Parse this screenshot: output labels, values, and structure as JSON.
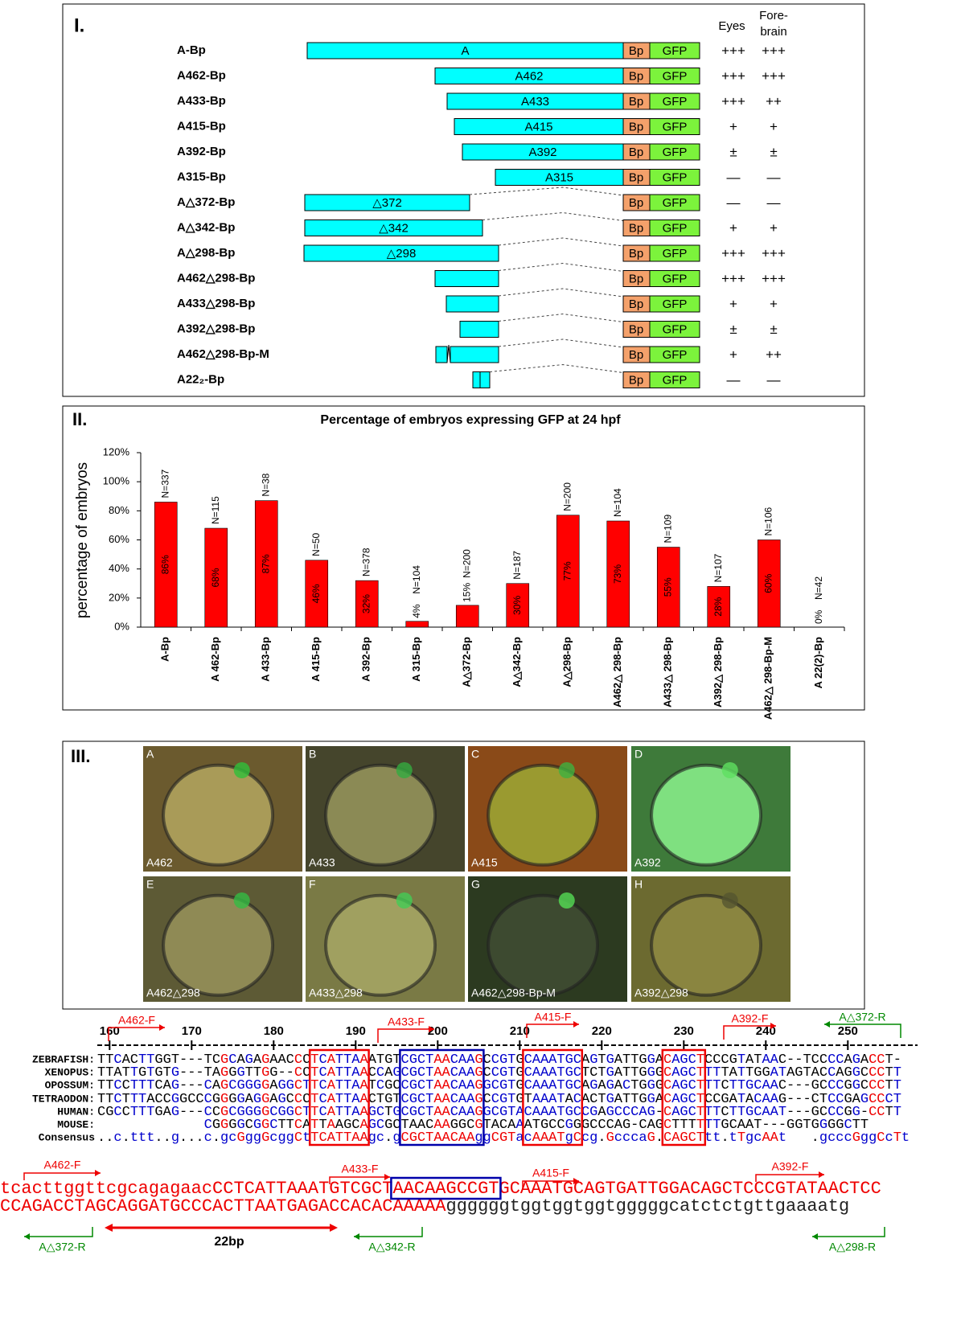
{
  "panel_i": {
    "label": "I.",
    "eyes_header": "Eyes",
    "forebrain_header": [
      "Fore-",
      "brain"
    ],
    "promoter": "Bp",
    "reporter": "GFP",
    "constructs": [
      {
        "name": "A-Bp",
        "fragment": "A",
        "eyes": "+++",
        "forebrain": "+++"
      },
      {
        "name": "A462-Bp",
        "fragment": "A462",
        "eyes": "+++",
        "forebrain": "+++"
      },
      {
        "name": "A433-Bp",
        "fragment": "A433",
        "eyes": "+++",
        "forebrain": "++"
      },
      {
        "name": "A415-Bp",
        "fragment": "A415",
        "eyes": "+",
        "forebrain": "+"
      },
      {
        "name": "A392-Bp",
        "fragment": "A392",
        "eyes": "±",
        "forebrain": "±"
      },
      {
        "name": "A315-Bp",
        "fragment": "A315",
        "eyes": "—",
        "forebrain": "—"
      },
      {
        "name": "A△372-Bp",
        "fragment": "△372",
        "eyes": "—",
        "forebrain": "—"
      },
      {
        "name": "A△342-Bp",
        "fragment": "△342",
        "eyes": "+",
        "forebrain": "+"
      },
      {
        "name": "A△298-Bp",
        "fragment": "△298",
        "eyes": "+++",
        "forebrain": "+++"
      },
      {
        "name": "A462△298-Bp",
        "eyes": "+++",
        "forebrain": "+++"
      },
      {
        "name": "A433△298-Bp",
        "eyes": "+",
        "forebrain": "+"
      },
      {
        "name": "A392△298-Bp",
        "eyes": "±",
        "forebrain": "±"
      },
      {
        "name": "A462△298-Bp-M",
        "eyes": "+",
        "forebrain": "++"
      },
      {
        "name": "A22₂-Bp",
        "eyes": "—",
        "forebrain": "—"
      }
    ]
  },
  "chart_data": {
    "type": "bar",
    "panel_label": "II.",
    "title": "Percentage of embryos expressing GFP at 24 hpf",
    "y_label": "percentage of embryos",
    "categories": [
      "A-Bp",
      "A 462-Bp",
      "A 433-Bp",
      "A 415-Bp",
      "A 392-Bp",
      "A 315-Bp",
      "A△372-Bp",
      "A△342-Bp",
      "A△298-Bp",
      "A462△ 298-Bp",
      "A433△ 298-Bp",
      "A392△ 298-Bp",
      "A462△ 298-Bp-M",
      "A 22(2)-Bp"
    ],
    "values": [
      86,
      68,
      87,
      46,
      32,
      4,
      15,
      30,
      77,
      73,
      55,
      28,
      60,
      0
    ],
    "value_labels": [
      "86%",
      "68%",
      "87%",
      "46%",
      "32%",
      "4%",
      "15%",
      "30%",
      "77%",
      "73%",
      "55%",
      "28%",
      "60%",
      "0%"
    ],
    "n_labels": [
      "N=337",
      "N=115",
      "N=38",
      "N=50",
      "N=378",
      "N=104",
      "N=200",
      "N=187",
      "N=200",
      "N=104",
      "N=109",
      "N=107",
      "N=106",
      "N=42"
    ],
    "color": "#ff0000",
    "ylim": [
      0,
      120
    ],
    "yticks": [
      {
        "value": 0,
        "label": "0%"
      },
      {
        "value": 20,
        "label": "20%"
      },
      {
        "value": 40,
        "label": "40%"
      },
      {
        "value": 60,
        "label": "60%"
      },
      {
        "value": 80,
        "label": "80%"
      },
      {
        "value": 100,
        "label": "100%"
      },
      {
        "value": 120,
        "label": "120%"
      }
    ]
  },
  "panel_iii": {
    "label": "III.",
    "images": [
      {
        "letter": "A",
        "caption": "A462"
      },
      {
        "letter": "B",
        "caption": "A433"
      },
      {
        "letter": "C",
        "caption": "A415"
      },
      {
        "letter": "D",
        "caption": "A392"
      },
      {
        "letter": "E",
        "caption": "A462△298"
      },
      {
        "letter": "F",
        "caption": "A433△298"
      },
      {
        "letter": "G",
        "caption": "A462△298-Bp-M"
      },
      {
        "letter": "H",
        "caption": "A392△298"
      }
    ]
  },
  "alignment": {
    "ruler": [
      160,
      170,
      180,
      190,
      200,
      210,
      220,
      230,
      240,
      250
    ],
    "primers": [
      "A462-F",
      "A433-F",
      "A415-F",
      "A392-F",
      "A△372-R"
    ],
    "rows": [
      {
        "species": "ZEBRAFISH:",
        "sequence": "TTCACTTGGT---TCGCAGAGAACCCTCATTAAATGTCGCTAACAAGCCGTGCAAATGCAGTGATTGGACAGCTCCCGTATAAC--TCCCCAGACCT-"
      },
      {
        "species": "XENOPUS:",
        "sequence": "TTATTGTGTG---TAGGGTTGG--CCTCATTAACCAGCGCTAACAAGCCGTGCAAATGCTCTGATTGGGCAGCTTTTATTGGATAGTACCAGGCCCTT"
      },
      {
        "species": "OPOSSUM:",
        "sequence": "TTCCTTTCAG---CAGCGGGGAGGCTTCATTAATCGCCGCTAACAAGGCGTGCAAATGCAGAGACTGGGCAGCTTTCTTGCAAC---GCCCGGCCCTT"
      },
      {
        "species": "TETRAODON:",
        "sequence": "TTCTTTACCGGCCCGGGGAGGAGCCCTCATTAACTGTCGCTAACAAGCCGTGTAAATACACTGATTGGACAGCTCCGATACAAG---CTCCGAGCCCT"
      },
      {
        "species": "HUMAN:",
        "sequence": "CGCCTTTGAG---CCGCGGGGCGGCTTCATTAAGCTGCGCTAACAAGGCGTACAAATGCCGAGCCCAG-CAGCTTTCTTGCAAT---GCCCGG-CCTT"
      },
      {
        "species": "MOUSE:",
        "sequence": "             CGGGGCGGCTTCATTAAGCAGCGCTAACAAGGCGTACAAATGCCGGGCCCAG-CAGCTTTTTTGCAAT---GGTGGGGCTT"
      },
      {
        "species": "Consensus",
        "sequence": "..c.ttt..g...c.gcGggGcggCtTCATTAAgc.gCGCTAACAAggCGTacAAATgCcg.GcccaG.CAGCTtt.tTgcAAt   .gcccGggCcTt"
      }
    ],
    "genomic": [
      "tcacttggttcgcagagaacCCTCATTAAATGTCGCTAACAAGCCGTGCAAATGCAGTGATTGGACAGCTCCCGTATAACTCC",
      "CCAGACCTAGCAGGATGCCCACTTAATGAGACCACACAAAAAggggggtggtggtggtgggggcatctctgttgaaaatg"
    ],
    "forward_primers": [
      "A462-F",
      "A433-F",
      "A415-F",
      "A392-F"
    ],
    "reverse_primers": [
      "A△372-R",
      "A△342-R",
      "A△298-R"
    ],
    "spacer": "22bp"
  }
}
